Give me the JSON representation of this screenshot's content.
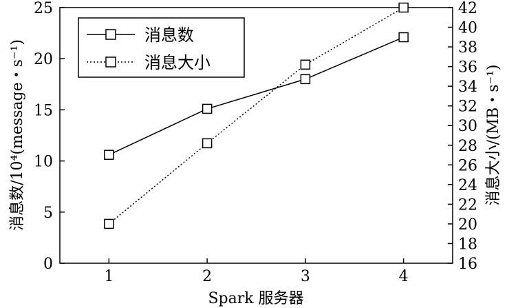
{
  "chart_data": {
    "type": "line",
    "x": [
      1,
      2,
      3,
      4
    ],
    "xlabel": "Spark 服务器",
    "ylabel_left": "消息数/10⁴(message・s⁻¹)",
    "ylabel_right": "消息大小/(MB・s⁻¹)",
    "xlim": [
      0.5,
      4.5
    ],
    "ylim_left": [
      0,
      25
    ],
    "ylim_right": [
      16,
      42
    ],
    "xticks": [
      "1",
      "2",
      "3",
      "4"
    ],
    "yticks_left": [
      "0",
      "5",
      "10",
      "15",
      "20",
      "25"
    ],
    "yticks_right": [
      "16",
      "18",
      "20",
      "22",
      "24",
      "26",
      "28",
      "30",
      "32",
      "34",
      "36",
      "38",
      "40",
      "42"
    ],
    "legend_position": "top-left",
    "grid": false,
    "series": [
      {
        "name": "消息数",
        "axis": "left",
        "style": "solid",
        "marker": "square",
        "values": [
          10.6,
          15.1,
          18.0,
          22.1
        ]
      },
      {
        "name": "消息大小",
        "axis": "right",
        "style": "dotted",
        "marker": "square",
        "values": [
          20.0,
          28.2,
          36.2,
          42.0
        ]
      }
    ]
  }
}
